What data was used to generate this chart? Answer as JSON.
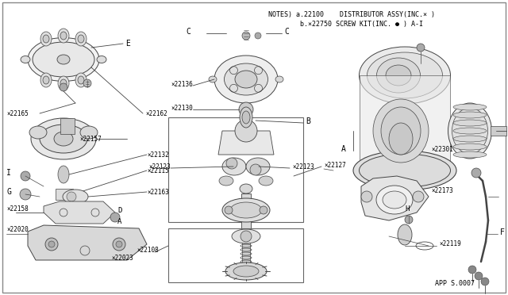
{
  "bg_color": "#ffffff",
  "line_color": "#444444",
  "notes_line1": "NOTES) a.22100    DISTRIBUTOR ASSY(INC.× )",
  "notes_line2": "        b.×22750 SCREW KIT(INC. ● ) A-I",
  "app_code": "APP S.0007",
  "figsize": [
    6.4,
    3.72
  ],
  "dpi": 100
}
